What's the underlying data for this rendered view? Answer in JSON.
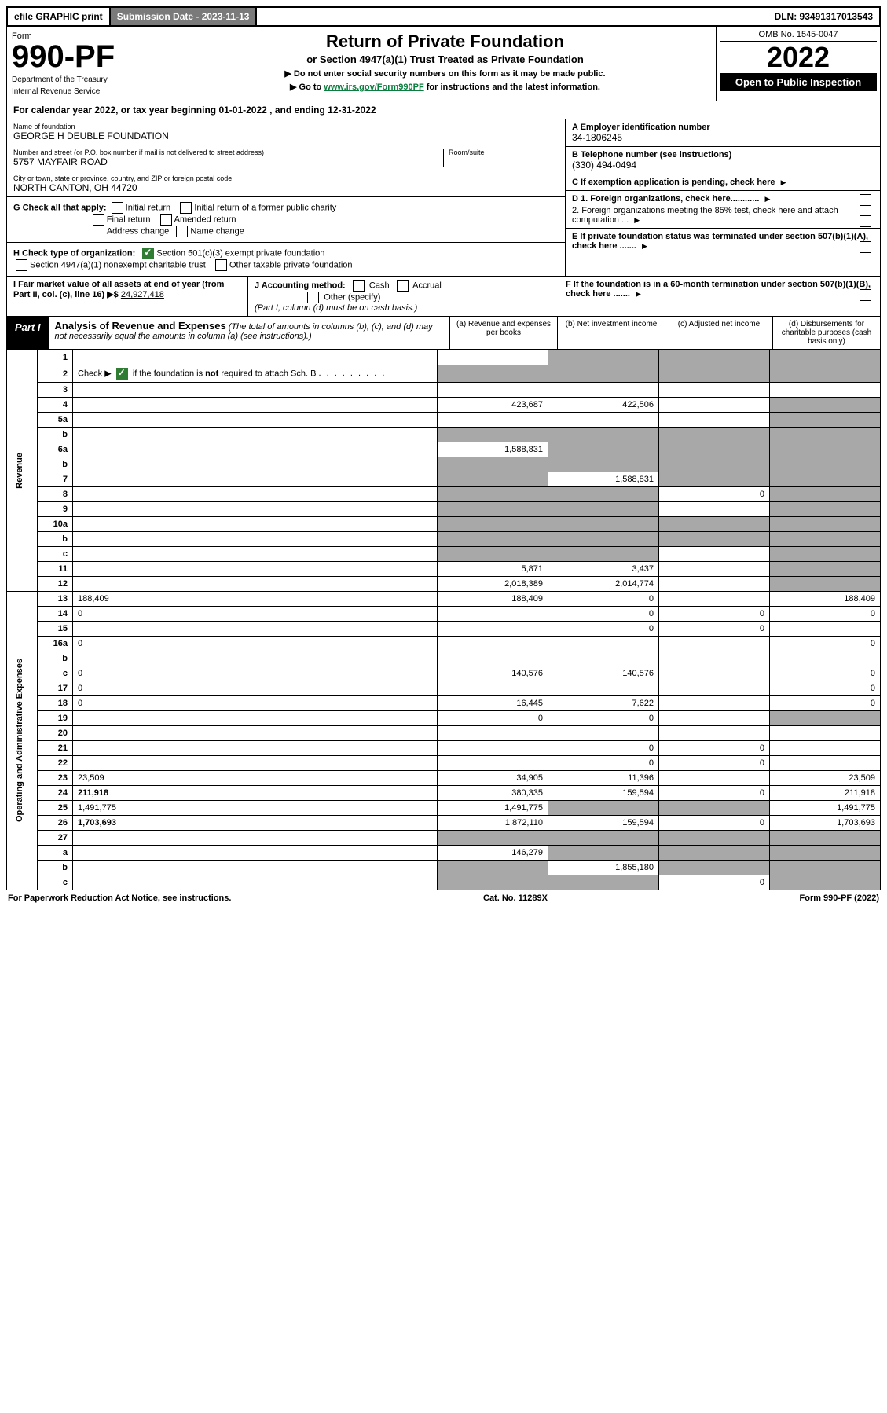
{
  "topbar": {
    "efile": "efile GRAPHIC print",
    "submission_label": "Submission Date - 2023-11-13",
    "dln": "DLN: 93491317013543"
  },
  "header": {
    "form_word": "Form",
    "form_number": "990-PF",
    "dept": "Department of the Treasury",
    "irs": "Internal Revenue Service",
    "title": "Return of Private Foundation",
    "subtitle": "or Section 4947(a)(1) Trust Treated as Private Foundation",
    "note1": "▶ Do not enter social security numbers on this form as it may be made public.",
    "note2_pre": "▶ Go to ",
    "note2_link": "www.irs.gov/Form990PF",
    "note2_post": " for instructions and the latest information.",
    "omb": "OMB No. 1545-0047",
    "year": "2022",
    "open": "Open to Public Inspection"
  },
  "cal_year": "For calendar year 2022, or tax year beginning 01-01-2022                      , and ending 12-31-2022",
  "entity": {
    "name_label": "Name of foundation",
    "name": "GEORGE H DEUBLE FOUNDATION",
    "addr_label": "Number and street (or P.O. box number if mail is not delivered to street address)",
    "addr": "5757 MAYFAIR ROAD",
    "room_label": "Room/suite",
    "city_label": "City or town, state or province, country, and ZIP or foreign postal code",
    "city": "NORTH CANTON, OH  44720",
    "a_label": "A Employer identification number",
    "a_val": "34-1806245",
    "b_label": "B Telephone number (see instructions)",
    "b_val": "(330) 494-0494",
    "c_label": "C If exemption application is pending, check here",
    "d1_label": "D 1. Foreign organizations, check here............",
    "d2_label": "2. Foreign organizations meeting the 85% test, check here and attach computation ...",
    "e_label": "E  If private foundation status was terminated under section 507(b)(1)(A), check here .......",
    "f_label": "F  If the foundation is in a 60-month termination under section 507(b)(1)(B), check here .......",
    "g_label": "G Check all that apply:",
    "g_opts": [
      "Initial return",
      "Initial return of a former public charity",
      "Final return",
      "Amended return",
      "Address change",
      "Name change"
    ],
    "h_label": "H Check type of organization:",
    "h_opt1": "Section 501(c)(3) exempt private foundation",
    "h_opt2": "Section 4947(a)(1) nonexempt charitable trust",
    "h_opt3": "Other taxable private foundation",
    "i_label": "I Fair market value of all assets at end of year (from Part II, col. (c), line 16) ▶$",
    "i_val": "24,927,418",
    "j_label": "J Accounting method:",
    "j_cash": "Cash",
    "j_accrual": "Accrual",
    "j_other": "Other (specify)",
    "j_note": "(Part I, column (d) must be on cash basis.)"
  },
  "part1": {
    "label": "Part I",
    "title": "Analysis of Revenue and Expenses",
    "desc": "(The total of amounts in columns (b), (c), and (d) may not necessarily equal the amounts in column (a) (see instructions).)",
    "col_a": "(a)  Revenue and expenses per books",
    "col_b": "(b)  Net investment income",
    "col_c": "(c)  Adjusted net income",
    "col_d": "(d)  Disbursements for charitable purposes (cash basis only)"
  },
  "side": {
    "revenue": "Revenue",
    "expenses": "Operating and Administrative Expenses"
  },
  "rows": [
    {
      "n": "1",
      "d": "",
      "a": "",
      "b": "",
      "c": "",
      "sa": false,
      "sb": true,
      "sc": true,
      "sd": true
    },
    {
      "n": "2",
      "d": "",
      "a": "",
      "b": "",
      "c": "",
      "sa": true,
      "sb": true,
      "sc": true,
      "sd": true,
      "checked": true
    },
    {
      "n": "3",
      "d": "",
      "a": "",
      "b": "",
      "c": ""
    },
    {
      "n": "4",
      "d": "",
      "a": "423,687",
      "b": "422,506",
      "c": "",
      "sd": true
    },
    {
      "n": "5a",
      "d": "",
      "a": "",
      "b": "",
      "c": "",
      "sd": true
    },
    {
      "n": "b",
      "d": "",
      "a": "",
      "b": "",
      "c": "",
      "sa": true,
      "sb": true,
      "sc": true,
      "sd": true
    },
    {
      "n": "6a",
      "d": "",
      "a": "1,588,831",
      "b": "",
      "c": "",
      "sb": true,
      "sc": true,
      "sd": true
    },
    {
      "n": "b",
      "d": "",
      "a": "",
      "b": "",
      "c": "",
      "sa": true,
      "sb": true,
      "sc": true,
      "sd": true
    },
    {
      "n": "7",
      "d": "",
      "a": "",
      "b": "1,588,831",
      "c": "",
      "sa": true,
      "sc": true,
      "sd": true
    },
    {
      "n": "8",
      "d": "",
      "a": "",
      "b": "",
      "c": "0",
      "sa": true,
      "sb": true,
      "sd": true
    },
    {
      "n": "9",
      "d": "",
      "a": "",
      "b": "",
      "c": "",
      "sa": true,
      "sb": true,
      "sd": true
    },
    {
      "n": "10a",
      "d": "",
      "a": "",
      "b": "",
      "c": "",
      "sa": true,
      "sb": true,
      "sc": true,
      "sd": true
    },
    {
      "n": "b",
      "d": "",
      "a": "",
      "b": "",
      "c": "",
      "sa": true,
      "sb": true,
      "sc": true,
      "sd": true
    },
    {
      "n": "c",
      "d": "",
      "a": "",
      "b": "",
      "c": "",
      "sa": true,
      "sb": true,
      "sd": true
    },
    {
      "n": "11",
      "d": "",
      "a": "5,871",
      "b": "3,437",
      "c": "",
      "sd": true
    },
    {
      "n": "12",
      "d": "",
      "a": "2,018,389",
      "b": "2,014,774",
      "c": "",
      "bold": true,
      "sd": true
    },
    {
      "n": "13",
      "d": "188,409",
      "a": "188,409",
      "b": "0",
      "c": ""
    },
    {
      "n": "14",
      "d": "0",
      "a": "",
      "b": "0",
      "c": "0"
    },
    {
      "n": "15",
      "d": "",
      "a": "",
      "b": "0",
      "c": "0"
    },
    {
      "n": "16a",
      "d": "0",
      "a": "",
      "b": "",
      "c": ""
    },
    {
      "n": "b",
      "d": "",
      "a": "",
      "b": "",
      "c": ""
    },
    {
      "n": "c",
      "d": "0",
      "a": "140,576",
      "b": "140,576",
      "c": ""
    },
    {
      "n": "17",
      "d": "0",
      "a": "",
      "b": "",
      "c": ""
    },
    {
      "n": "18",
      "d": "0",
      "a": "16,445",
      "b": "7,622",
      "c": ""
    },
    {
      "n": "19",
      "d": "",
      "a": "0",
      "b": "0",
      "c": "",
      "sd": true
    },
    {
      "n": "20",
      "d": "",
      "a": "",
      "b": "",
      "c": ""
    },
    {
      "n": "21",
      "d": "",
      "a": "",
      "b": "0",
      "c": "0"
    },
    {
      "n": "22",
      "d": "",
      "a": "",
      "b": "0",
      "c": "0"
    },
    {
      "n": "23",
      "d": "23,509",
      "a": "34,905",
      "b": "11,396",
      "c": ""
    },
    {
      "n": "24",
      "d": "211,918",
      "a": "380,335",
      "b": "159,594",
      "c": "0",
      "bold": true
    },
    {
      "n": "25",
      "d": "1,491,775",
      "a": "1,491,775",
      "b": "",
      "c": "",
      "sb": true,
      "sc": true
    },
    {
      "n": "26",
      "d": "1,703,693",
      "a": "1,872,110",
      "b": "159,594",
      "c": "0",
      "bold": true
    },
    {
      "n": "27",
      "d": "",
      "a": "",
      "b": "",
      "c": "",
      "sa": true,
      "sb": true,
      "sc": true,
      "sd": true
    },
    {
      "n": "a",
      "d": "",
      "a": "146,279",
      "b": "",
      "c": "",
      "bold": true,
      "sb": true,
      "sc": true,
      "sd": true
    },
    {
      "n": "b",
      "d": "",
      "a": "",
      "b": "1,855,180",
      "c": "",
      "bold": true,
      "sa": true,
      "sc": true,
      "sd": true
    },
    {
      "n": "c",
      "d": "",
      "a": "",
      "b": "",
      "c": "0",
      "bold": true,
      "sa": true,
      "sb": true,
      "sd": true
    }
  ],
  "footer": {
    "left": "For Paperwork Reduction Act Notice, see instructions.",
    "mid": "Cat. No. 11289X",
    "right": "Form 990-PF (2022)"
  }
}
